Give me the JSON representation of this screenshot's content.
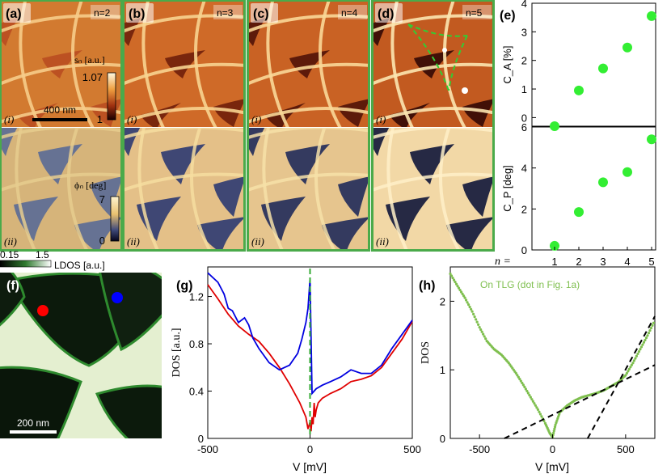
{
  "panels": [
    {
      "id": "a",
      "label": "(a)",
      "n": "n=2",
      "row1": "(i)",
      "row2": "(ii)"
    },
    {
      "id": "b",
      "label": "(b)",
      "n": "n=3",
      "row1": "(i)",
      "row2": "(ii)"
    },
    {
      "id": "c",
      "label": "(c)",
      "n": "n=4",
      "row1": "(i)",
      "row2": "(ii)"
    },
    {
      "id": "d",
      "label": "(d)",
      "n": "n=5",
      "row1": "(i)",
      "row2": "(ii)"
    }
  ],
  "amplitude_colorbar": {
    "label": "sₙ [a.u.]",
    "max": "1.07",
    "min": "1"
  },
  "phase_colorbar": {
    "label": "ϕₙ [deg]",
    "max": "7",
    "min": "0"
  },
  "scalebar_a": "400 nm",
  "panel_e": {
    "label": "(e)",
    "n_label": "n ="
  },
  "panel_f": {
    "label": "(f)",
    "scalebar": "200 nm",
    "colorbar_min": "0.15",
    "colorbar_max": "1.5",
    "colorbar_label": "LDOS [a.u.]",
    "dot_red": "#ff0000",
    "dot_blue": "#0000ff"
  },
  "panel_g": {
    "label": "(g)"
  },
  "panel_h": {
    "label": "(h)",
    "annotation": "On TLG (dot in Fig. 1a)"
  },
  "colors": {
    "green": "#33cc33",
    "panel_border": "#4aaa4a",
    "red": "#e00000",
    "blue": "#0000e0",
    "tlg": "#7fbf4f"
  },
  "chart_data": [
    {
      "type": "scatter",
      "id": "e-top",
      "x": [
        1,
        2,
        3,
        4,
        5
      ],
      "y": [
        -0.3,
        0.95,
        1.72,
        2.45,
        3.55
      ],
      "xlabel": "",
      "ylabel": "C_A [%]",
      "ylim": [
        -0.3,
        4
      ],
      "yticks": [
        "0",
        "1",
        "2",
        "3",
        "4"
      ],
      "xticks": [
        "1",
        "2",
        "3",
        "4",
        "5"
      ]
    },
    {
      "type": "scatter",
      "id": "e-bottom",
      "x": [
        1,
        2,
        3,
        4,
        5
      ],
      "y": [
        0.2,
        1.85,
        3.3,
        3.8,
        5.4
      ],
      "xlabel": "",
      "ylabel": "C_P [deg]",
      "ylim": [
        0,
        6
      ],
      "yticks": [
        "0",
        "2",
        "4",
        "6"
      ],
      "xticks": [
        "1",
        "2",
        "3",
        "4",
        "5"
      ]
    },
    {
      "type": "line",
      "id": "g",
      "xlabel": "V [mV]",
      "ylabel": "DOS [a.u.]",
      "xlim": [
        -500,
        500
      ],
      "ylim": [
        0,
        1.45
      ],
      "xticks": [
        "-500",
        "0",
        "500"
      ],
      "yticks": [
        "0",
        "0.4",
        "0.8",
        "1.2"
      ],
      "series": [
        {
          "name": "red",
          "x": [
            -500,
            -450,
            -400,
            -350,
            -300,
            -250,
            -200,
            -150,
            -100,
            -50,
            -20,
            -10,
            0,
            5,
            10,
            15,
            20,
            25,
            30,
            40,
            60,
            100,
            150,
            200,
            250,
            300,
            350,
            400,
            450,
            500
          ],
          "y": [
            1.3,
            1.18,
            1.05,
            0.95,
            0.88,
            0.82,
            0.72,
            0.6,
            0.46,
            0.3,
            0.18,
            0.08,
            0.14,
            0.06,
            0.18,
            0.12,
            0.3,
            0.18,
            0.24,
            0.3,
            0.34,
            0.38,
            0.42,
            0.48,
            0.5,
            0.53,
            0.6,
            0.72,
            0.84,
            0.99
          ]
        },
        {
          "name": "blue",
          "x": [
            -500,
            -450,
            -420,
            -400,
            -380,
            -350,
            -320,
            -300,
            -280,
            -250,
            -200,
            -150,
            -100,
            -60,
            -40,
            -20,
            -10,
            0,
            10,
            30,
            60,
            100,
            150,
            200,
            250,
            300,
            350,
            400,
            450,
            500
          ],
          "y": [
            1.4,
            1.32,
            1.22,
            1.1,
            1.08,
            0.98,
            1.02,
            0.96,
            0.85,
            0.76,
            0.64,
            0.58,
            0.62,
            0.72,
            0.84,
            0.98,
            1.1,
            1.35,
            0.38,
            0.42,
            0.45,
            0.48,
            0.52,
            0.58,
            0.55,
            0.55,
            0.62,
            0.76,
            0.88,
            1.0
          ]
        }
      ],
      "vline": 0
    },
    {
      "type": "scatter",
      "id": "h",
      "xlabel": "V [mV]",
      "ylabel": "DOS",
      "xlim": [
        -700,
        700
      ],
      "ylim": [
        0,
        2.5
      ],
      "xticks": [
        "-500",
        "0",
        "500"
      ],
      "yticks": [
        "0",
        "1",
        "2"
      ],
      "series": [
        {
          "name": "TLG",
          "x": [
            -700,
            -650,
            -600,
            -550,
            -500,
            -450,
            -400,
            -350,
            -300,
            -250,
            -200,
            -150,
            -100,
            -50,
            -20,
            0,
            20,
            50,
            100,
            150,
            200,
            250,
            300,
            350,
            400,
            450,
            500,
            550,
            600,
            650,
            700
          ],
          "y": [
            2.4,
            2.22,
            2.05,
            1.85,
            1.62,
            1.42,
            1.3,
            1.22,
            1.1,
            0.95,
            0.78,
            0.6,
            0.42,
            0.22,
            0.08,
            0.02,
            0.2,
            0.38,
            0.48,
            0.55,
            0.6,
            0.63,
            0.66,
            0.7,
            0.76,
            0.82,
            0.92,
            1.1,
            1.3,
            1.5,
            1.72
          ]
        }
      ],
      "fit_lines": [
        {
          "x": [
            -330,
            700
          ],
          "y": [
            0.0,
            1.07
          ]
        },
        {
          "x": [
            240,
            700
          ],
          "y": [
            0.0,
            1.78
          ]
        }
      ]
    }
  ]
}
